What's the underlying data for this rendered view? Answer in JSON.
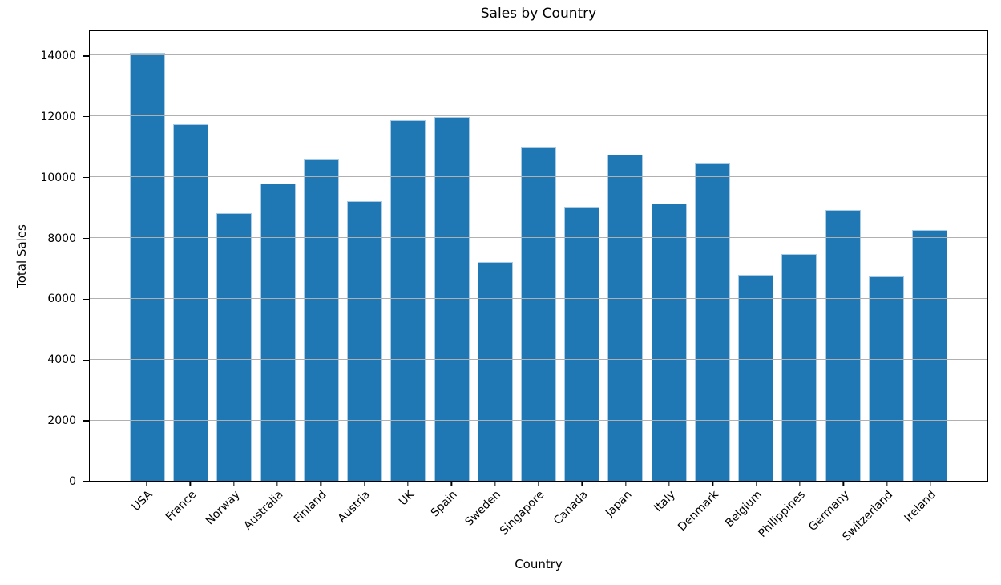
{
  "figure": {
    "background": "#ffffff"
  },
  "chart_data": {
    "type": "bar",
    "title": "Sales by Country",
    "xlabel": "Country",
    "ylabel": "Total Sales",
    "categories": [
      "USA",
      "France",
      "Norway",
      "Australia",
      "Finland",
      "Austria",
      "UK",
      "Spain",
      "Sweden",
      "Singapore",
      "Canada",
      "Japan",
      "Italy",
      "Denmark",
      "Belgium",
      "Philippines",
      "Germany",
      "Switzerland",
      "Ireland"
    ],
    "values": [
      14080,
      11740,
      8810,
      9770,
      10580,
      9200,
      11870,
      11970,
      7210,
      10980,
      9020,
      10730,
      9130,
      10450,
      6780,
      7450,
      8900,
      6730,
      8240
    ],
    "yticks": [
      0,
      2000,
      4000,
      6000,
      8000,
      10000,
      12000,
      14000
    ],
    "ylim": [
      0,
      14790
    ],
    "grid": "horizontal-y",
    "grid_above_bars": true,
    "legend": "none",
    "x_tick_rotation_deg": 45,
    "bar_color": "#1f77b4",
    "bar_edge_color": "#a9cbe5",
    "grid_color": "#b0b0b0",
    "axis_color": "#000000",
    "text_color": "#000000"
  }
}
